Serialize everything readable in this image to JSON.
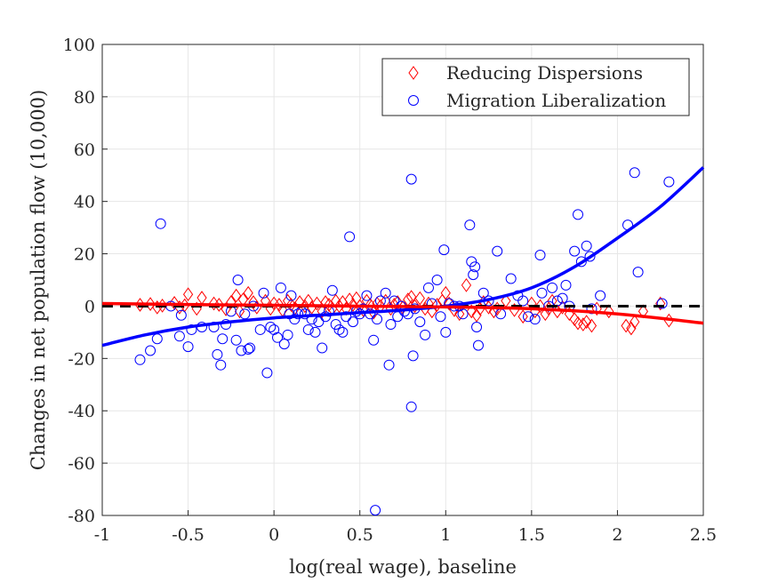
{
  "chart_data": {
    "type": "scatter",
    "xlabel": "log(real wage), baseline",
    "ylabel": "Changes in net population flow (10,000)",
    "xlim": [
      -1,
      2.5
    ],
    "ylim": [
      -80,
      100
    ],
    "x_ticks": [
      -1,
      -0.5,
      0,
      0.5,
      1,
      1.5,
      2,
      2.5
    ],
    "x_tick_labels": [
      "-1",
      "-0.5",
      "0",
      "0.5",
      "1",
      "1.5",
      "2",
      "2.5"
    ],
    "y_ticks": [
      -80,
      -60,
      -40,
      -20,
      0,
      20,
      40,
      60,
      80,
      100
    ],
    "y_tick_labels": [
      "-80",
      "-60",
      "-40",
      "-20",
      "0",
      "20",
      "40",
      "60",
      "80",
      "100"
    ],
    "grid": true,
    "legend_position": "top-right",
    "series": [
      {
        "name": "Reducing Dispersions",
        "marker": "diamond",
        "color": "#ff0000",
        "points": [
          [
            -0.78,
            0.5
          ],
          [
            -0.72,
            0.8
          ],
          [
            -0.68,
            -0.5
          ],
          [
            -0.65,
            0.2
          ],
          [
            -0.58,
            1.2
          ],
          [
            -0.55,
            -0.5
          ],
          [
            -0.52,
            0.3
          ],
          [
            -0.5,
            4.5
          ],
          [
            -0.45,
            -1
          ],
          [
            -0.42,
            3.2
          ],
          [
            -0.35,
            1
          ],
          [
            -0.32,
            0.5
          ],
          [
            -0.28,
            -1.2
          ],
          [
            -0.25,
            1.5
          ],
          [
            -0.22,
            4
          ],
          [
            -0.2,
            -2
          ],
          [
            -0.18,
            2.5
          ],
          [
            -0.15,
            5
          ],
          [
            -0.12,
            1.5
          ],
          [
            -0.1,
            -0.5
          ],
          [
            -0.05,
            2
          ],
          [
            -0.02,
            -1
          ],
          [
            0.0,
            1
          ],
          [
            0.03,
            0.5
          ],
          [
            0.05,
            -1.5
          ],
          [
            0.08,
            2
          ],
          [
            0.1,
            0.5
          ],
          [
            0.12,
            -1
          ],
          [
            0.15,
            1.5
          ],
          [
            0.18,
            0
          ],
          [
            0.2,
            2
          ],
          [
            0.22,
            -0.5
          ],
          [
            0.25,
            1
          ],
          [
            0.28,
            -2
          ],
          [
            0.3,
            1.5
          ],
          [
            0.32,
            0.5
          ],
          [
            0.34,
            -1
          ],
          [
            0.36,
            2
          ],
          [
            0.38,
            0
          ],
          [
            0.4,
            1.5
          ],
          [
            0.42,
            -1
          ],
          [
            0.44,
            2.5
          ],
          [
            0.46,
            0.5
          ],
          [
            0.48,
            3
          ],
          [
            0.5,
            0
          ],
          [
            0.52,
            -1.5
          ],
          [
            0.54,
            2
          ],
          [
            0.56,
            0.5
          ],
          [
            0.58,
            -2.5
          ],
          [
            0.6,
            1
          ],
          [
            0.62,
            0
          ],
          [
            0.65,
            2
          ],
          [
            0.68,
            -1
          ],
          [
            0.7,
            0.5
          ],
          [
            0.72,
            1.5
          ],
          [
            0.75,
            -0.5
          ],
          [
            0.78,
            2.5
          ],
          [
            0.8,
            3.5
          ],
          [
            0.82,
            0
          ],
          [
            0.85,
            3
          ],
          [
            0.88,
            -1
          ],
          [
            0.9,
            1
          ],
          [
            0.92,
            -2
          ],
          [
            0.95,
            0.5
          ],
          [
            0.98,
            2
          ],
          [
            1.0,
            5
          ],
          [
            1.02,
            1
          ],
          [
            1.05,
            -1.5
          ],
          [
            1.08,
            -3
          ],
          [
            1.12,
            8
          ],
          [
            1.15,
            -2
          ],
          [
            1.18,
            -3.5
          ],
          [
            1.2,
            -1
          ],
          [
            1.22,
            1.5
          ],
          [
            1.25,
            -0.5
          ],
          [
            1.28,
            -2
          ],
          [
            1.3,
            -1
          ],
          [
            1.35,
            2
          ],
          [
            1.4,
            -1.5
          ],
          [
            1.45,
            -4
          ],
          [
            1.5,
            1
          ],
          [
            1.52,
            -2
          ],
          [
            1.55,
            0
          ],
          [
            1.58,
            -3
          ],
          [
            1.6,
            -1
          ],
          [
            1.62,
            2
          ],
          [
            1.65,
            -2
          ],
          [
            1.68,
            -0.5
          ],
          [
            1.72,
            -3
          ],
          [
            1.75,
            -5
          ],
          [
            1.77,
            -6.5
          ],
          [
            1.8,
            -7
          ],
          [
            1.82,
            -6
          ],
          [
            1.85,
            -7.5
          ],
          [
            1.88,
            -1
          ],
          [
            1.95,
            -2
          ],
          [
            2.05,
            -7.5
          ],
          [
            2.08,
            -8.5
          ],
          [
            2.1,
            -6
          ],
          [
            2.15,
            -2
          ],
          [
            2.25,
            1
          ],
          [
            2.3,
            -5.5
          ]
        ]
      },
      {
        "name": "Migration Liberalization",
        "marker": "circle",
        "color": "#0000ff",
        "points": [
          [
            -0.78,
            -20.5
          ],
          [
            -0.72,
            -17
          ],
          [
            -0.68,
            -12.5
          ],
          [
            -0.66,
            31.5
          ],
          [
            -0.6,
            0
          ],
          [
            -0.55,
            -11.5
          ],
          [
            -0.54,
            -3.5
          ],
          [
            -0.5,
            -15.5
          ],
          [
            -0.48,
            -9
          ],
          [
            -0.42,
            -8
          ],
          [
            -0.35,
            -8
          ],
          [
            -0.33,
            -18.5
          ],
          [
            -0.31,
            -22.5
          ],
          [
            -0.3,
            -12.5
          ],
          [
            -0.28,
            -7
          ],
          [
            -0.25,
            -2
          ],
          [
            -0.22,
            -13
          ],
          [
            -0.21,
            10
          ],
          [
            -0.19,
            -17
          ],
          [
            -0.17,
            -3
          ],
          [
            -0.15,
            -16.5
          ],
          [
            -0.14,
            -16
          ],
          [
            -0.12,
            0
          ],
          [
            -0.08,
            -9
          ],
          [
            -0.06,
            5
          ],
          [
            -0.04,
            -25.5
          ],
          [
            -0.02,
            -8
          ],
          [
            0.0,
            -9
          ],
          [
            0.02,
            -12
          ],
          [
            0.04,
            7
          ],
          [
            0.06,
            -14.5
          ],
          [
            0.08,
            -11
          ],
          [
            0.09,
            -3
          ],
          [
            0.1,
            4
          ],
          [
            0.12,
            -5
          ],
          [
            0.14,
            -3
          ],
          [
            0.16,
            -2
          ],
          [
            0.18,
            -3
          ],
          [
            0.2,
            -9
          ],
          [
            0.22,
            -5
          ],
          [
            0.24,
            -10
          ],
          [
            0.26,
            -6
          ],
          [
            0.28,
            -16
          ],
          [
            0.3,
            -4
          ],
          [
            0.32,
            -2
          ],
          [
            0.34,
            6
          ],
          [
            0.36,
            -7
          ],
          [
            0.38,
            -9
          ],
          [
            0.4,
            -10
          ],
          [
            0.42,
            -4
          ],
          [
            0.44,
            26.5
          ],
          [
            0.46,
            -6
          ],
          [
            0.48,
            -2
          ],
          [
            0.5,
            -3
          ],
          [
            0.52,
            -1
          ],
          [
            0.54,
            4
          ],
          [
            0.56,
            -3
          ],
          [
            0.58,
            -13
          ],
          [
            0.59,
            -78
          ],
          [
            0.6,
            -5
          ],
          [
            0.62,
            2
          ],
          [
            0.65,
            5
          ],
          [
            0.67,
            -22.5
          ],
          [
            0.68,
            -7
          ],
          [
            0.7,
            2
          ],
          [
            0.72,
            -4
          ],
          [
            0.74,
            0
          ],
          [
            0.76,
            -2
          ],
          [
            0.78,
            -3
          ],
          [
            0.8,
            48.5
          ],
          [
            0.81,
            -19
          ],
          [
            0.8,
            -38.5
          ],
          [
            0.82,
            -1
          ],
          [
            0.85,
            -6
          ],
          [
            0.88,
            -11
          ],
          [
            0.9,
            7
          ],
          [
            0.92,
            1
          ],
          [
            0.95,
            10
          ],
          [
            0.97,
            -4
          ],
          [
            0.99,
            21.5
          ],
          [
            1.0,
            -10
          ],
          [
            1.02,
            1
          ],
          [
            1.05,
            0
          ],
          [
            1.08,
            0
          ],
          [
            1.1,
            -3
          ],
          [
            1.14,
            31
          ],
          [
            1.15,
            17
          ],
          [
            1.16,
            12
          ],
          [
            1.17,
            15
          ],
          [
            1.18,
            -8
          ],
          [
            1.19,
            -15
          ],
          [
            1.22,
            5
          ],
          [
            1.25,
            2
          ],
          [
            1.3,
            21
          ],
          [
            1.32,
            -3
          ],
          [
            1.38,
            10.5
          ],
          [
            1.42,
            4
          ],
          [
            1.45,
            2
          ],
          [
            1.48,
            -4
          ],
          [
            1.52,
            -5
          ],
          [
            1.55,
            19.5
          ],
          [
            1.56,
            5
          ],
          [
            1.6,
            0
          ],
          [
            1.62,
            7
          ],
          [
            1.65,
            2
          ],
          [
            1.68,
            3
          ],
          [
            1.7,
            8
          ],
          [
            1.72,
            0
          ],
          [
            1.75,
            21
          ],
          [
            1.77,
            35
          ],
          [
            1.79,
            17
          ],
          [
            1.82,
            23
          ],
          [
            1.84,
            19
          ],
          [
            1.85,
            -1
          ],
          [
            1.9,
            4
          ],
          [
            2.06,
            31
          ],
          [
            2.1,
            51
          ],
          [
            2.12,
            13
          ],
          [
            2.3,
            47.5
          ],
          [
            2.26,
            1
          ]
        ],
        "fit_line": [
          [
            -1,
            -15
          ],
          [
            -0.75,
            -11
          ],
          [
            -0.5,
            -8
          ],
          [
            -0.25,
            -6
          ],
          [
            0,
            -4.5
          ],
          [
            0.25,
            -3.5
          ],
          [
            0.5,
            -2.5
          ],
          [
            0.75,
            -1.5
          ],
          [
            1,
            0
          ],
          [
            1.25,
            2.5
          ],
          [
            1.5,
            7
          ],
          [
            1.75,
            15
          ],
          [
            2,
            26
          ],
          [
            2.25,
            38
          ],
          [
            2.5,
            53
          ]
        ]
      },
      {
        "name": "",
        "fit_line_of": "Reducing Dispersions",
        "color": "#ff0000",
        "fit_line": [
          [
            -1,
            1
          ],
          [
            -0.5,
            0.6
          ],
          [
            0,
            0.3
          ],
          [
            0.5,
            0
          ],
          [
            1,
            -0.3
          ],
          [
            1.5,
            -1
          ],
          [
            2,
            -3
          ],
          [
            2.5,
            -6.5
          ]
        ]
      }
    ],
    "zero_line": {
      "y": 0,
      "style": "dashed",
      "color": "#000000"
    }
  }
}
